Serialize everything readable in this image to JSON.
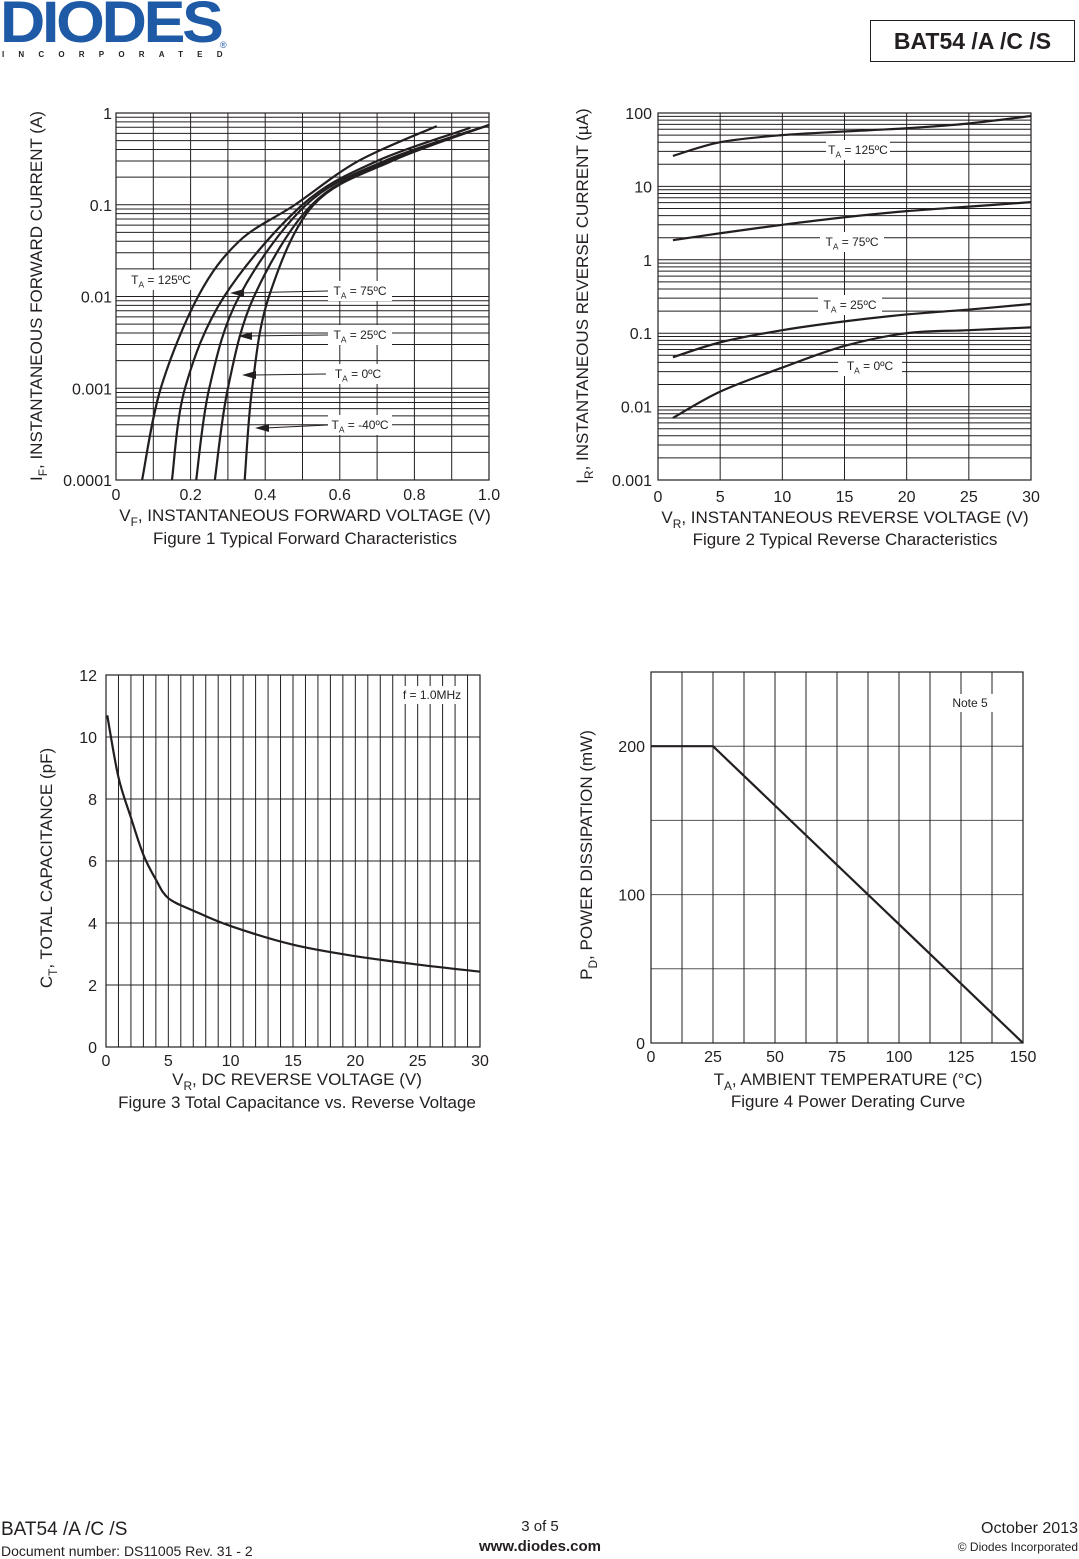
{
  "header": {
    "logo_main": "DIODES",
    "logo_sub": "INCORPORATED",
    "logo_reg": "®",
    "part_number": "BAT54 /A /C /S",
    "brand_color": "#1f5aa6"
  },
  "footer": {
    "part_number": "BAT54 /A /C /S",
    "document_number": "Document number: DS11005 Rev. 31 - 2",
    "page": "3 of 5",
    "website": "www.diodes.com",
    "date": "October 2013",
    "copyright": "© Diodes Incorporated"
  },
  "chart_data": [
    {
      "type": "line",
      "caption": "Figure 1  Typical Forward Characteristics",
      "xlabel": {
        "main": "V",
        "sub": "F",
        "rest": ", INSTANTANEOUS FORWARD VOLTAGE (V)"
      },
      "ylabel": {
        "main": "I",
        "sub": "F",
        "rest": ", INSTANTANEOUS FORWARD CURRENT (A)"
      },
      "xlim": [
        0,
        1.0
      ],
      "ylim": [
        0.0001,
        1
      ],
      "yscale": "log",
      "grid": true,
      "xticks": [
        "0",
        "0.2",
        "0.4",
        "0.6",
        "0.8",
        "1.0"
      ],
      "yticks": [
        "1",
        "0.1",
        "0.01",
        "0.001",
        "0.0001"
      ],
      "series": [
        {
          "name": {
            "main": "T",
            "sub": "A",
            "rest": " = 125ºC"
          },
          "x": [
            0.07,
            0.12,
            0.22,
            0.33,
            0.48,
            0.65,
            0.86
          ],
          "y": [
            0.0001,
            0.001,
            0.01,
            0.04,
            0.1,
            0.3,
            0.72
          ]
        },
        {
          "name": {
            "main": "T",
            "sub": "A",
            "rest": " = 75ºC"
          },
          "x": [
            0.15,
            0.185,
            0.29,
            0.5,
            0.7,
            0.95
          ],
          "y": [
            0.0001,
            0.001,
            0.01,
            0.1,
            0.3,
            0.69
          ]
        },
        {
          "name": {
            "main": "T",
            "sub": "A",
            "rest": " = 25ºC"
          },
          "x": [
            0.215,
            0.25,
            0.33,
            0.51,
            0.72,
            1.0
          ],
          "y": [
            0.0001,
            0.001,
            0.01,
            0.1,
            0.3,
            0.74
          ]
        },
        {
          "name": {
            "main": "T",
            "sub": "A",
            "rest": " = 0ºC"
          },
          "x": [
            0.265,
            0.3,
            0.37,
            0.525,
            0.73,
            1.0
          ],
          "y": [
            0.0001,
            0.001,
            0.01,
            0.1,
            0.3,
            0.74
          ]
        },
        {
          "name": {
            "main": "T",
            "sub": "A",
            "rest": " = -40ºC"
          },
          "x": [
            0.345,
            0.365,
            0.41,
            0.53,
            0.74,
            1.0
          ],
          "y": [
            0.0001,
            0.001,
            0.01,
            0.1,
            0.3,
            0.74
          ]
        }
      ]
    },
    {
      "type": "line",
      "caption": "Figure 2  Typical Reverse Characteristics",
      "xlabel": {
        "main": "V",
        "sub": "R",
        "rest": ", INSTANTANEOUS REVERSE VOLTAGE (V)"
      },
      "ylabel": {
        "main": "I",
        "sub": "R",
        "rest": ", INSTANTANEOUS REVERSE CURRENT (µA)"
      },
      "xlim": [
        0,
        30
      ],
      "ylim": [
        0.001,
        100
      ],
      "yscale": "log",
      "grid": true,
      "xticks": [
        "0",
        "5",
        "10",
        "15",
        "20",
        "25",
        "30"
      ],
      "yticks": [
        "100",
        "10",
        "1",
        "0.1",
        "0.01",
        "0.001"
      ],
      "series": [
        {
          "name": {
            "main": "T",
            "sub": "A",
            "rest": " = 125ºC"
          },
          "x": [
            1.2,
            5,
            10,
            15,
            20,
            25,
            30
          ],
          "y": [
            26,
            40,
            50,
            56,
            62,
            72,
            91
          ]
        },
        {
          "name": {
            "main": "T",
            "sub": "A",
            "rest": " = 75ºC"
          },
          "x": [
            1.2,
            5,
            10,
            15,
            20,
            25,
            30
          ],
          "y": [
            1.85,
            2.3,
            3.0,
            3.8,
            4.6,
            5.3,
            6.1
          ]
        },
        {
          "name": {
            "main": "T",
            "sub": "A",
            "rest": " = 25ºC"
          },
          "x": [
            1.2,
            5,
            10,
            15,
            20,
            25,
            30
          ],
          "y": [
            0.047,
            0.075,
            0.11,
            0.145,
            0.18,
            0.21,
            0.25
          ]
        },
        {
          "name": {
            "main": "T",
            "sub": "A",
            "rest": " = 0ºC"
          },
          "x": [
            1.2,
            5,
            10,
            15,
            20,
            25,
            30
          ],
          "y": [
            0.007,
            0.016,
            0.034,
            0.067,
            0.1,
            0.11,
            0.12
          ]
        }
      ]
    },
    {
      "type": "line",
      "caption": "Figure 3  Total Capacitance vs. Reverse Voltage",
      "xlabel": {
        "main": "V",
        "sub": "R",
        "rest": ", DC REVERSE VOLTAGE (V)"
      },
      "ylabel": {
        "main": "C",
        "sub": "T",
        "rest": ", TOTAL CAPACITANCE (pF)"
      },
      "xlim": [
        0,
        30
      ],
      "ylim": [
        0,
        12
      ],
      "yscale": "linear",
      "grid": true,
      "xticks": [
        "0",
        "5",
        "10",
        "15",
        "20",
        "25",
        "30"
      ],
      "yticks": [
        "12",
        "10",
        "8",
        "6",
        "4",
        "2",
        "0"
      ],
      "annotation": "f = 1.0MHz",
      "series": [
        {
          "x": [
            0.1,
            1,
            2,
            3,
            4,
            5,
            7,
            10,
            15,
            20,
            25,
            30
          ],
          "y": [
            10.7,
            8.7,
            7.4,
            6.2,
            5.4,
            4.8,
            4.4,
            3.9,
            3.3,
            2.93,
            2.66,
            2.43
          ]
        }
      ]
    },
    {
      "type": "line",
      "caption": "Figure 4  Power Derating Curve",
      "xlabel": {
        "main": "T",
        "sub": "A",
        "rest": ",  AMBIENT TEMPERATURE (°C)"
      },
      "ylabel": {
        "main": "P",
        "sub": "D",
        "rest": ",  POWER DISSIPATION (mW)"
      },
      "xlim": [
        0,
        150
      ],
      "ylim": [
        0,
        250
      ],
      "yscale": "linear",
      "grid": true,
      "xticks": [
        "0",
        "25",
        "50",
        "75",
        "100",
        "125",
        "150"
      ],
      "yticks": [
        "200",
        "100",
        "0"
      ],
      "annotation": "Note 5",
      "series": [
        {
          "x": [
            0,
            25,
            150
          ],
          "y": [
            200,
            200,
            0
          ]
        }
      ]
    }
  ]
}
